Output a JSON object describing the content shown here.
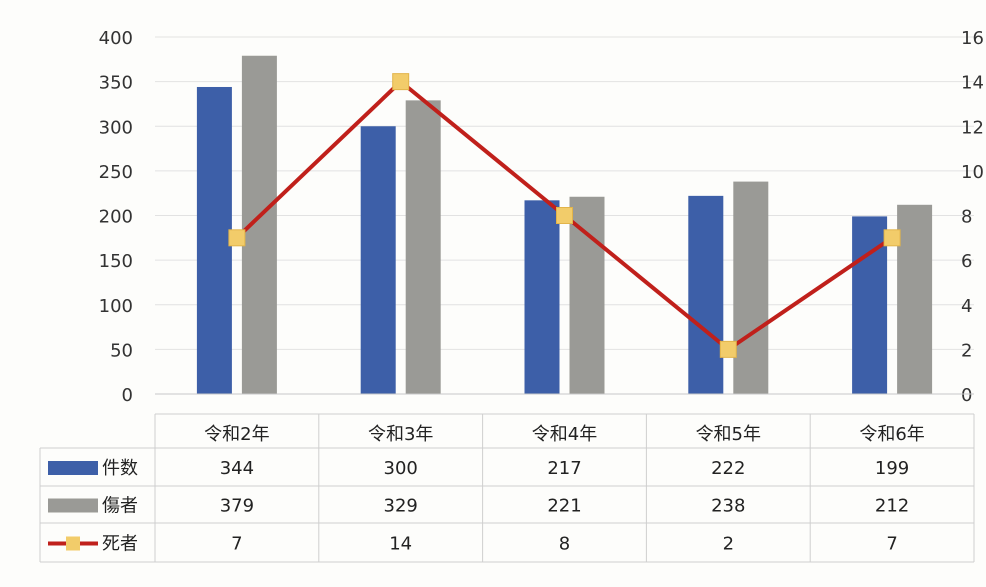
{
  "chart_data": {
    "type": "bar",
    "categories": [
      "令和2年",
      "令和3年",
      "令和4年",
      "令和5年",
      "令和6年"
    ],
    "series": [
      {
        "name": "件数",
        "kind": "bar",
        "axis": "left",
        "color": "#3d5fa8",
        "values": [
          344,
          300,
          217,
          222,
          199
        ]
      },
      {
        "name": "傷者",
        "kind": "bar",
        "axis": "left",
        "color": "#9a9a96",
        "values": [
          379,
          329,
          221,
          238,
          212
        ]
      },
      {
        "name": "死者",
        "kind": "line",
        "axis": "right",
        "color": "#c0201b",
        "marker_color": "#f2cc6a",
        "values": [
          7,
          14,
          8,
          2,
          7
        ]
      }
    ],
    "y_left": {
      "min": 0,
      "max": 400,
      "ticks": [
        "0",
        "50",
        "100",
        "150",
        "200",
        "250",
        "300",
        "350",
        "400"
      ]
    },
    "y_right": {
      "min": 0,
      "max": 16,
      "ticks": [
        "0",
        "2",
        "4",
        "6",
        "8",
        "10",
        "12",
        "14",
        "16"
      ]
    },
    "grid": true,
    "legend": "data-table"
  }
}
